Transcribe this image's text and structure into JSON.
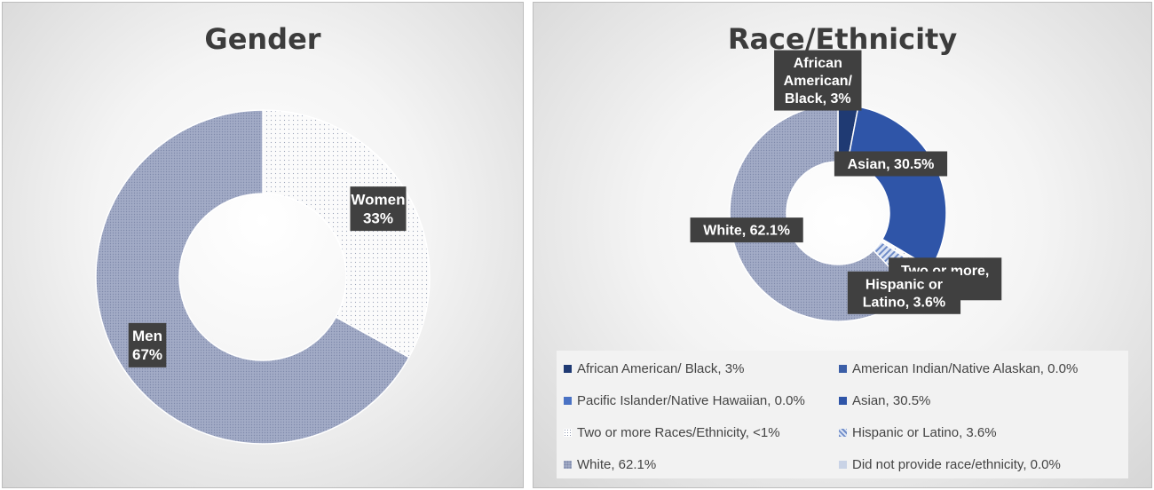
{
  "chart_data": [
    {
      "type": "pie",
      "donut": true,
      "title": "Gender",
      "categories": [
        "Women",
        "Men"
      ],
      "values": [
        33,
        67
      ],
      "data_labels": [
        [
          "Women",
          "33%"
        ],
        [
          "Men",
          "67%"
        ]
      ],
      "colors": [
        "#f7f7f7",
        "#9ca7c4"
      ],
      "patterns": [
        "dots-sparse",
        "dots-dense"
      ],
      "legend": "none"
    },
    {
      "type": "pie",
      "donut": true,
      "title": "Race/Ethnicity",
      "categories": [
        "African American/ Black, 3%",
        "American Indian/Native Alaskan, 0.0%",
        "Pacific Islander/Native Hawaiian, 0.0%",
        "Asian, 30.5%",
        "Two or more Races/Ethnicity, <1%",
        "Hispanic or Latino, 3.6%",
        "White, 62.1%",
        "Did not provide race/ethnicity, 0.0%"
      ],
      "values": [
        3,
        0,
        0,
        30.5,
        0.8,
        3.6,
        62.1,
        0
      ],
      "data_labels": [
        [
          "African",
          "American/",
          "Black, 3%"
        ],
        [],
        [],
        [
          "Asian, 30.5%"
        ],
        [
          "Two or more,",
          "<1%"
        ],
        [
          "Hispanic or",
          "Latino, 3.6%"
        ],
        [
          "White, 62.1%"
        ],
        []
      ],
      "colors": [
        "#1f3a73",
        "#3b5ea7",
        "#4a72c4",
        "#2f55a8",
        "#ffffff",
        "#a9b9dc",
        "#a3acc8",
        "#c9d3e6"
      ],
      "patterns": [
        "solid",
        "solid",
        "solid",
        "solid",
        "dots-sparse",
        "diagonal",
        "dots-dense",
        "solid"
      ],
      "legend": "bottom"
    }
  ]
}
